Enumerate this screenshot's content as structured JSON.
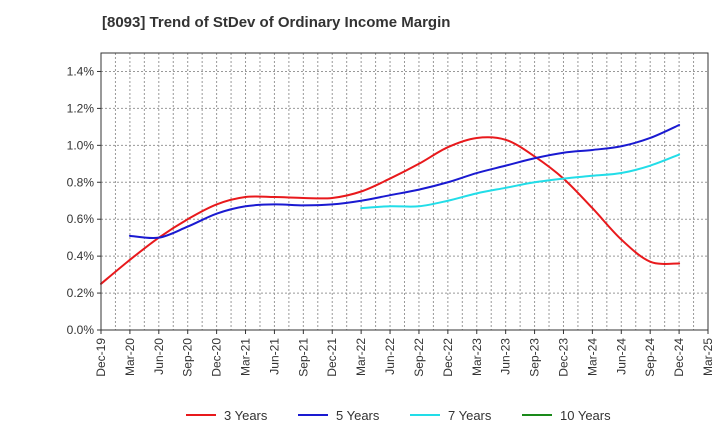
{
  "chart_data": {
    "type": "line",
    "title": "[8093]  Trend of StDev of Ordinary Income Margin",
    "xlabel": "",
    "ylabel": "",
    "ylim": [
      0,
      1.5
    ],
    "yticks": [
      "0.0%",
      "0.2%",
      "0.4%",
      "0.6%",
      "0.8%",
      "1.0%",
      "1.2%",
      "1.4%"
    ],
    "categories": [
      "Dec-19",
      "Mar-20",
      "Jun-20",
      "Sep-20",
      "Dec-20",
      "Mar-21",
      "Jun-21",
      "Sep-21",
      "Dec-21",
      "Mar-22",
      "Jun-22",
      "Sep-22",
      "Dec-22",
      "Mar-23",
      "Jun-23",
      "Sep-23",
      "Dec-23",
      "Mar-24",
      "Jun-24",
      "Sep-24",
      "Dec-24",
      "Mar-25"
    ],
    "grid": true,
    "legend_position": "bottom",
    "series": [
      {
        "name": "3 Years",
        "color": "#e8191c",
        "values": [
          0.25,
          0.38,
          0.5,
          0.6,
          0.68,
          0.72,
          0.72,
          0.715,
          0.715,
          0.75,
          0.82,
          0.9,
          0.99,
          1.04,
          1.03,
          0.94,
          0.82,
          0.66,
          0.49,
          0.37,
          0.36,
          null
        ]
      },
      {
        "name": "5 Years",
        "color": "#1a1ad1",
        "values": [
          null,
          0.51,
          0.5,
          0.56,
          0.63,
          0.67,
          0.68,
          0.675,
          0.68,
          0.7,
          0.73,
          0.76,
          0.8,
          0.85,
          0.89,
          0.93,
          0.96,
          0.975,
          0.995,
          1.04,
          1.11,
          null
        ]
      },
      {
        "name": "7 Years",
        "color": "#22dde8",
        "values": [
          null,
          null,
          null,
          null,
          null,
          null,
          null,
          null,
          null,
          0.66,
          0.67,
          0.67,
          0.7,
          0.74,
          0.77,
          0.8,
          0.82,
          0.835,
          0.85,
          0.89,
          0.95,
          null
        ]
      },
      {
        "name": "10 Years",
        "color": "#1a8a1a",
        "values": [
          null,
          null,
          null,
          null,
          null,
          null,
          null,
          null,
          null,
          null,
          null,
          null,
          null,
          null,
          null,
          null,
          null,
          null,
          null,
          null,
          null,
          null
        ]
      }
    ]
  }
}
